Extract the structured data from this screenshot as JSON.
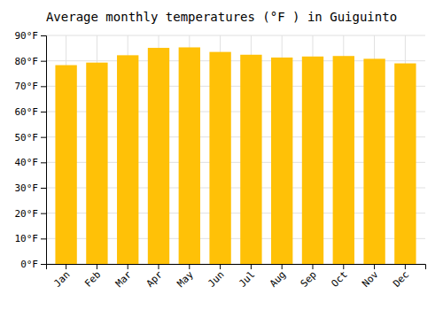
{
  "chart_data": {
    "type": "bar",
    "title": "Average monthly temperatures (°F ) in Guiguinto",
    "categories": [
      "Jan",
      "Feb",
      "Mar",
      "Apr",
      "May",
      "Jun",
      "Jul",
      "Aug",
      "Sep",
      "Oct",
      "Nov",
      "Dec"
    ],
    "values": [
      78.3,
      79.3,
      82.2,
      85.1,
      85.3,
      83.5,
      82.4,
      81.3,
      81.7,
      81.9,
      80.8,
      79.0
    ],
    "color": "#FFC107",
    "ylim": [
      0,
      90
    ],
    "yticks": [
      {
        "value": 0,
        "label": "0°F"
      },
      {
        "value": 10,
        "label": "10°F"
      },
      {
        "value": 20,
        "label": "20°F"
      },
      {
        "value": 30,
        "label": "30°F"
      },
      {
        "value": 40,
        "label": "40°F"
      },
      {
        "value": 50,
        "label": "50°F"
      },
      {
        "value": 60,
        "label": "60°F"
      },
      {
        "value": 70,
        "label": "70°F"
      },
      {
        "value": 80,
        "label": "80°F"
      },
      {
        "value": 90,
        "label": "90°F"
      }
    ],
    "grid": true
  }
}
